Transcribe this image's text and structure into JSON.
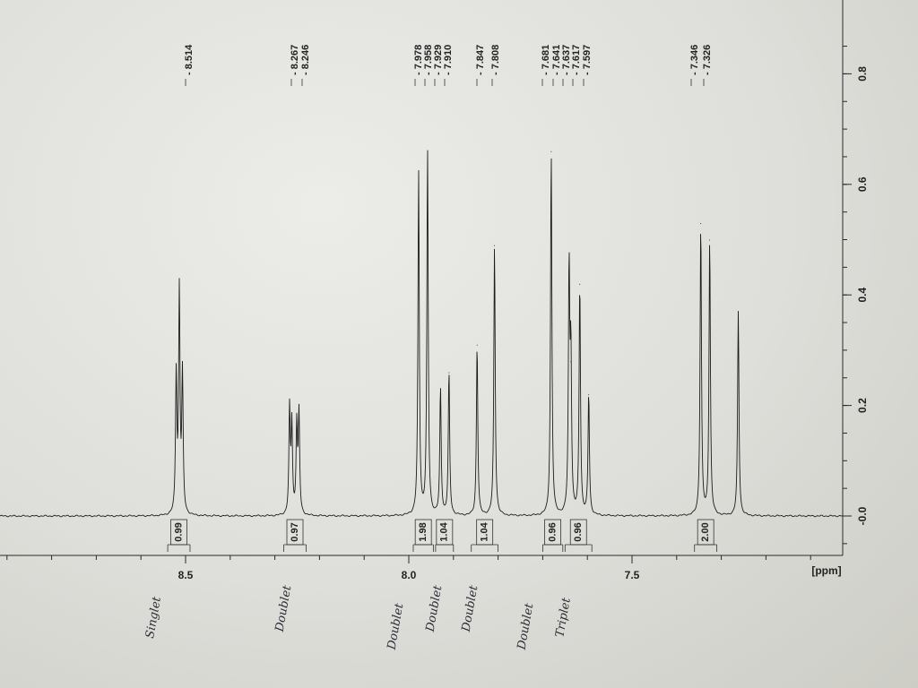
{
  "chart_data": {
    "type": "line",
    "title": "",
    "xlabel": "[ppm]",
    "ylabel": "",
    "xlim": [
      8.9,
      7.0
    ],
    "ylim": [
      -0.07,
      0.87
    ],
    "x_ticks": [
      "8.5",
      "8.0",
      "7.5"
    ],
    "y_ticks": [
      "-0.0",
      "0.2",
      "0.4",
      "0.6",
      "0.8"
    ],
    "peak_labels": [
      "8.514",
      "8.267",
      "8.246",
      "7.978",
      "7.958",
      "7.929",
      "7.910",
      "7.847",
      "7.808",
      "7.681",
      "7.641",
      "7.637",
      "7.617",
      "7.597",
      "7.346",
      "7.326"
    ],
    "peaks": [
      {
        "ppm": 8.514,
        "height": 0.4
      },
      {
        "ppm": 8.521,
        "height": 0.25
      },
      {
        "ppm": 8.507,
        "height": 0.25
      },
      {
        "ppm": 8.267,
        "height": 0.19
      },
      {
        "ppm": 8.246,
        "height": 0.18
      },
      {
        "ppm": 8.262,
        "height": 0.16
      },
      {
        "ppm": 8.251,
        "height": 0.16
      },
      {
        "ppm": 7.978,
        "height": 0.62
      },
      {
        "ppm": 7.958,
        "height": 0.66
      },
      {
        "ppm": 7.929,
        "height": 0.23
      },
      {
        "ppm": 7.91,
        "height": 0.26
      },
      {
        "ppm": 7.847,
        "height": 0.31
      },
      {
        "ppm": 7.808,
        "height": 0.49
      },
      {
        "ppm": 7.681,
        "height": 0.66
      },
      {
        "ppm": 7.641,
        "height": 0.44
      },
      {
        "ppm": 7.637,
        "height": 0.28
      },
      {
        "ppm": 7.617,
        "height": 0.42
      },
      {
        "ppm": 7.597,
        "height": 0.22
      },
      {
        "ppm": 7.346,
        "height": 0.53
      },
      {
        "ppm": 7.326,
        "height": 0.5
      },
      {
        "ppm": 7.262,
        "height": 0.37
      }
    ],
    "integrals": [
      {
        "value": "0.99",
        "from": 8.54,
        "to": 8.49
      },
      {
        "value": "0.97",
        "from": 8.28,
        "to": 8.23
      },
      {
        "value": "1.98",
        "from": 7.99,
        "to": 7.945
      },
      {
        "value": "1.04",
        "from": 7.94,
        "to": 7.9
      },
      {
        "value": "1.04",
        "from": 7.86,
        "to": 7.8
      },
      {
        "value": "0.96",
        "from": 7.7,
        "to": 7.655
      },
      {
        "value": "0.96",
        "from": 7.65,
        "to": 7.59
      },
      {
        "value": "2.00",
        "from": 7.36,
        "to": 7.31
      }
    ],
    "annotations": [
      "Singlet",
      "Doublet",
      "Doublet",
      "Doublet",
      "Doublet",
      "Doublet",
      "Triplet"
    ]
  }
}
